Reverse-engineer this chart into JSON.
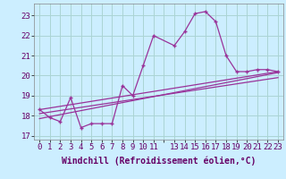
{
  "background_color": "#cceeff",
  "grid_color": "#aad4d4",
  "line_color": "#993399",
  "marker_color": "#993399",
  "xlabel": "Windchill (Refroidissement éolien,°C)",
  "xlabel_fontsize": 7,
  "tick_fontsize": 6.5,
  "xlim": [
    -0.5,
    23.5
  ],
  "ylim": [
    16.8,
    23.6
  ],
  "yticks": [
    17,
    18,
    19,
    20,
    21,
    22,
    23
  ],
  "xtick_labels": [
    "0",
    "1",
    "2",
    "3",
    "4",
    "5",
    "6",
    "7",
    "8",
    "9",
    "10",
    "11",
    "",
    "13",
    "14",
    "15",
    "16",
    "17",
    "18",
    "19",
    "20",
    "21",
    "22",
    "23"
  ],
  "line1_x": [
    0,
    1,
    2,
    3,
    4,
    5,
    6,
    7,
    8,
    9,
    10,
    11,
    13,
    14,
    15,
    16,
    17,
    18,
    19,
    20,
    21,
    22,
    23
  ],
  "line1_y": [
    18.3,
    17.9,
    17.7,
    18.9,
    17.4,
    17.6,
    17.6,
    17.6,
    19.5,
    19.0,
    20.5,
    22.0,
    21.5,
    22.2,
    23.1,
    23.2,
    22.7,
    21.0,
    20.2,
    20.2,
    20.3,
    20.3,
    20.2
  ],
  "line2_x": [
    0,
    23
  ],
  "line2_y": [
    18.3,
    20.2
  ],
  "line3_x": [
    0,
    23
  ],
  "line3_y": [
    17.85,
    20.15
  ],
  "line4_x": [
    0,
    23
  ],
  "line4_y": [
    18.1,
    19.9
  ]
}
